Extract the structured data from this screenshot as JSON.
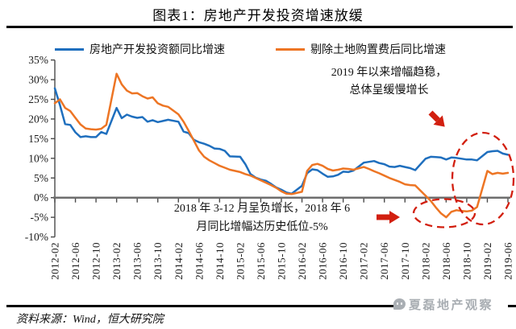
{
  "title": "图表1：房地产开发投资增速放缓",
  "legend": [
    {
      "label": "房地产开发投资额同比增速",
      "color": "#1F6FBE"
    },
    {
      "label": "剔除土地购置费后同比增速",
      "color": "#ED7524"
    }
  ],
  "annotations": {
    "top": {
      "line1": "2019 年以来增幅趋稳，",
      "line2": "总体呈缓慢增长"
    },
    "bottom": {
      "line1": "2018 年 3-12 月呈负增长，2018 年 6",
      "line2": "月同比增幅达历史低位-5%"
    }
  },
  "source": "资料来源：Wind，恒大研究院",
  "watermark": "夏磊地产观察",
  "colors": {
    "blue": "#1F6FBE",
    "orange": "#ED7524",
    "red": "#D21F0F",
    "axis": "#6E6E6E",
    "tick": "#4a4a4a",
    "text": "#1a1a1a",
    "watermark": "#a9aeb3"
  },
  "chart_data": {
    "type": "line",
    "title": "图表1：房地产开发投资增速放缓",
    "xlabel": "",
    "ylabel": "",
    "ylim": [
      -10,
      35
    ],
    "ytick_step": 5,
    "grid": false,
    "legend_position": "top",
    "ytick_labels": [
      "35%",
      "30%",
      "25%",
      "20%",
      "15%",
      "10%",
      "5%",
      "0%",
      "-5%",
      "-10%"
    ],
    "xtick_labels": [
      "2012-02",
      "2012-06",
      "2012-10",
      "2013-02",
      "2013-06",
      "2013-10",
      "2014-02",
      "2014-06",
      "2014-10",
      "2015-02",
      "2015-06",
      "2015-10",
      "2016-02",
      "2016-06",
      "2016-10",
      "2017-02",
      "2017-06",
      "2017-10",
      "2018-02",
      "2018-06",
      "2018-10",
      "2019-02",
      "2019-06"
    ],
    "x": [
      "2012-02",
      "2012-03",
      "2012-04",
      "2012-05",
      "2012-06",
      "2012-07",
      "2012-08",
      "2012-09",
      "2012-10",
      "2012-11",
      "2012-12",
      "2013-02",
      "2013-03",
      "2013-04",
      "2013-05",
      "2013-06",
      "2013-07",
      "2013-08",
      "2013-09",
      "2013-10",
      "2013-11",
      "2013-12",
      "2014-02",
      "2014-03",
      "2014-04",
      "2014-05",
      "2014-06",
      "2014-07",
      "2014-08",
      "2014-09",
      "2014-10",
      "2014-11",
      "2014-12",
      "2015-02",
      "2015-03",
      "2015-04",
      "2015-05",
      "2015-06",
      "2015-07",
      "2015-08",
      "2015-09",
      "2015-10",
      "2015-11",
      "2015-12",
      "2016-02",
      "2016-03",
      "2016-04",
      "2016-05",
      "2016-06",
      "2016-07",
      "2016-08",
      "2016-09",
      "2016-10",
      "2016-11",
      "2016-12",
      "2017-02",
      "2017-03",
      "2017-04",
      "2017-05",
      "2017-06",
      "2017-07",
      "2017-08",
      "2017-09",
      "2017-10",
      "2017-11",
      "2017-12",
      "2018-02",
      "2018-03",
      "2018-04",
      "2018-05",
      "2018-06",
      "2018-07",
      "2018-08",
      "2018-09",
      "2018-10",
      "2018-11",
      "2018-12",
      "2019-02",
      "2019-03",
      "2019-04",
      "2019-05",
      "2019-06"
    ],
    "series": [
      {
        "name": "房地产开发投资额同比增速",
        "color": "#1F6FBE",
        "values": [
          27.8,
          23.5,
          18.7,
          18.5,
          16.6,
          15.4,
          15.6,
          15.4,
          15.4,
          16.7,
          16.2,
          22.8,
          20.2,
          21.1,
          20.6,
          20.3,
          20.5,
          19.3,
          19.7,
          19.2,
          19.5,
          19.8,
          19.3,
          16.8,
          16.4,
          14.7,
          14.1,
          13.7,
          13.2,
          12.5,
          12.4,
          11.9,
          10.5,
          10.4,
          8.5,
          6.0,
          5.1,
          4.6,
          4.3,
          3.5,
          2.6,
          2.0,
          1.3,
          1.0,
          3.0,
          6.2,
          7.2,
          7.0,
          6.1,
          5.3,
          5.4,
          5.8,
          6.6,
          6.5,
          6.9,
          8.9,
          9.1,
          9.3,
          8.8,
          8.5,
          7.9,
          7.8,
          8.1,
          7.8,
          7.5,
          7.0,
          9.9,
          10.4,
          10.3,
          10.2,
          9.7,
          10.2,
          10.1,
          9.9,
          9.7,
          9.7,
          9.5,
          11.6,
          11.8,
          11.9,
          11.2,
          10.9
        ]
      },
      {
        "name": "剔除土地购置费后同比增速",
        "color": "#ED7524",
        "values": [
          24.0,
          25.0,
          22.8,
          22.0,
          20.3,
          18.6,
          17.6,
          17.4,
          17.3,
          17.5,
          18.5,
          31.5,
          28.8,
          27.2,
          26.5,
          26.6,
          25.8,
          25.2,
          25.5,
          24.0,
          23.4,
          23.1,
          21.2,
          19.3,
          17.0,
          14.5,
          12.0,
          10.4,
          9.5,
          8.8,
          8.1,
          7.6,
          7.1,
          6.5,
          6.0,
          5.6,
          5.0,
          4.4,
          3.8,
          3.2,
          2.5,
          1.6,
          1.0,
          0.9,
          1.5,
          6.8,
          8.3,
          8.6,
          8.1,
          7.3,
          6.9,
          7.1,
          7.4,
          7.3,
          7.1,
          7.8,
          7.3,
          6.7,
          6.2,
          5.6,
          5.0,
          4.5,
          4.0,
          3.4,
          3.2,
          3.1,
          0.5,
          -0.8,
          -2.5,
          -4.0,
          -5.0,
          -3.6,
          -3.2,
          -3.4,
          -3.5,
          -3.3,
          -2.4,
          6.8,
          6.0,
          6.3,
          6.1,
          6.3
        ]
      }
    ]
  }
}
